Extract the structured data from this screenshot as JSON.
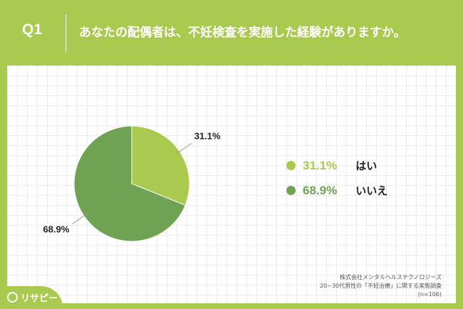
{
  "header": {
    "question_no": "Q1",
    "title": "あなたの配偶者は、不妊検査を実施した経験がありますか。"
  },
  "colors": {
    "background": "#a9c94f",
    "yes": "#a9c94f",
    "no": "#6fa353"
  },
  "chart_data": {
    "type": "pie",
    "slices": [
      {
        "label": "はい",
        "value": 31.1,
        "value_label": "31.1%",
        "color": "#a9c94f"
      },
      {
        "label": "いいえ",
        "value": 68.9,
        "value_label": "68.9%",
        "color": "#6fa353"
      }
    ],
    "legend_position": "right"
  },
  "source": {
    "line1": "株式会社メンタルヘルステクノロジーズ",
    "line2": "20~30代男性の「不妊治療」に関する実態調査",
    "line3": "(n=106)"
  },
  "logo": {
    "text": "リサピー",
    "icon": "pin-icon"
  }
}
